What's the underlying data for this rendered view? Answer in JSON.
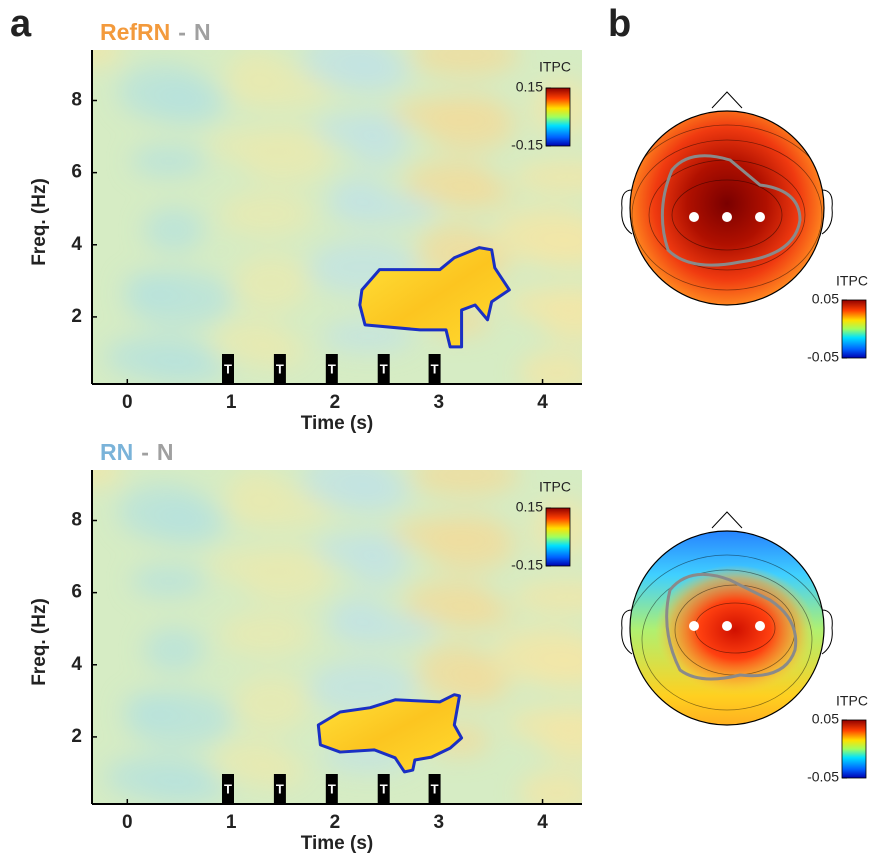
{
  "panel_labels": [
    "a",
    "b"
  ],
  "chart_data": [
    {
      "type": "heatmap",
      "title": [
        "RefRN",
        "-",
        "N"
      ],
      "title_colors": [
        "#f39a3c",
        "#a0a0a0",
        "#a0a0a0"
      ],
      "x_label": "Time (s)",
      "y_label": "Freq. (Hz)",
      "xlim": [
        -0.34,
        4.38
      ],
      "ylim": [
        0.14,
        9.4
      ],
      "xticks": [
        0,
        1,
        2,
        3,
        4
      ],
      "yticks": [
        2,
        4,
        6,
        8
      ],
      "markers": {
        "label": "T",
        "x": [
          0.97,
          1.47,
          1.97,
          2.47,
          2.96
        ]
      },
      "colorbar": {
        "label": "ITPC",
        "ticks": [
          0.15,
          -0.15
        ]
      },
      "cluster": {
        "color": "#1a2fc4",
        "x": [
          2.26,
          2.43,
          3.01,
          3.15,
          3.39,
          3.51,
          3.54,
          3.68,
          3.51,
          3.47,
          3.35,
          3.22,
          3.22,
          3.11,
          3.07,
          2.82,
          2.29,
          2.24
        ],
        "y": [
          2.75,
          3.31,
          3.31,
          3.64,
          3.92,
          3.86,
          3.36,
          2.75,
          2.42,
          1.92,
          2.33,
          2.19,
          1.17,
          1.17,
          1.64,
          1.64,
          1.78,
          2.33
        ]
      }
    },
    {
      "type": "heatmap",
      "title": [
        "RN",
        "-",
        "N"
      ],
      "title_colors": [
        "#7ab3d9",
        "#a0a0a0",
        "#a0a0a0"
      ],
      "x_label": "Time (s)",
      "y_label": "Freq. (Hz)",
      "xlim": [
        -0.34,
        4.38
      ],
      "ylim": [
        0.14,
        9.4
      ],
      "xticks": [
        0,
        1,
        2,
        3,
        4
      ],
      "yticks": [
        2,
        4,
        6,
        8
      ],
      "markers": {
        "label": "T",
        "x": [
          0.97,
          1.47,
          1.97,
          2.47,
          2.96
        ]
      },
      "colorbar": {
        "label": "ITPC",
        "ticks": [
          0.15,
          -0.15
        ]
      },
      "cluster": {
        "color": "#1a2fc4",
        "x": [
          1.84,
          2.05,
          2.34,
          2.58,
          3.01,
          3.15,
          3.2,
          3.15,
          3.22,
          3.11,
          2.93,
          2.77,
          2.75,
          2.67,
          2.58,
          2.38,
          2.05,
          1.86
        ],
        "y": [
          2.33,
          2.69,
          2.81,
          3.03,
          2.97,
          3.17,
          3.14,
          2.33,
          1.97,
          1.69,
          1.44,
          1.36,
          1.08,
          1.03,
          1.42,
          1.64,
          1.58,
          1.78
        ]
      }
    }
  ],
  "topoplots": [
    {
      "colorbar": {
        "label": "ITPC",
        "ticks": [
          0.05,
          -0.05
        ]
      }
    },
    {
      "colorbar": {
        "label": "ITPC",
        "ticks": [
          0.05,
          -0.05
        ]
      }
    }
  ]
}
